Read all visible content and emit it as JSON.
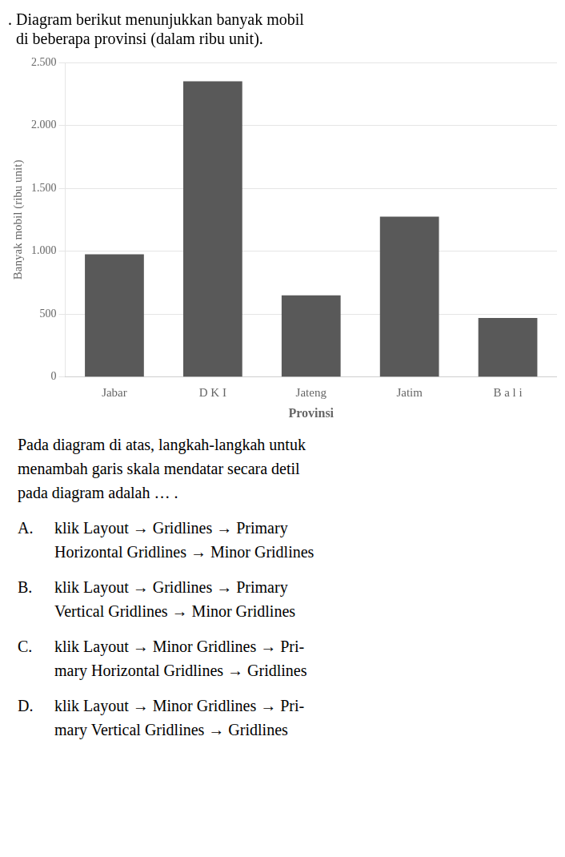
{
  "chart_data": {
    "type": "bar",
    "title": [
      ". Diagram berikut menunjukkan banyak mobil",
      "  di beberapa provinsi (dalam ribu unit)."
    ],
    "categories": [
      "Jabar",
      "D K I",
      "Jateng",
      "Jatim",
      "B a l i"
    ],
    "values": [
      975,
      2350,
      650,
      1275,
      470
    ],
    "color": "#595959",
    "xlabel": "Provinsi",
    "ylabel": "Banyak mobil (ribu unit)",
    "ylim": [
      0,
      2500
    ],
    "yticks": [
      0,
      500,
      {
        "value": 1000,
        "label": "1.000"
      },
      {
        "value": 1500,
        "label": "1.500"
      },
      {
        "value": 2000,
        "label": "2.000"
      },
      {
        "value": 2500,
        "label": "2.500"
      }
    ],
    "grid": true,
    "annotations": [
      {
        "text": "Pada diagram di atas, langkah-langkah untuk\nmenambah garis skala mendatar secara detil\npada diagram adalah … ."
      },
      {
        "label": "A.",
        "text": "klik Layout → Gridlines → Primary\nHorizontal Gridlines → Minor Gridlines"
      },
      {
        "label": "B.",
        "text": "klik Layout → Gridlines → Primary\nVertical Gridlines → Minor Gridlines"
      },
      {
        "label": "C.",
        "text": "klik Layout → Minor Gridlines → Pri-\nmary Horizontal Gridlines → Gridlines"
      },
      {
        "label": "D.",
        "text": "klik Layout → Minor Gridlines → Pri-\nmary Vertical Gridlines → Gridlines"
      }
    ]
  }
}
